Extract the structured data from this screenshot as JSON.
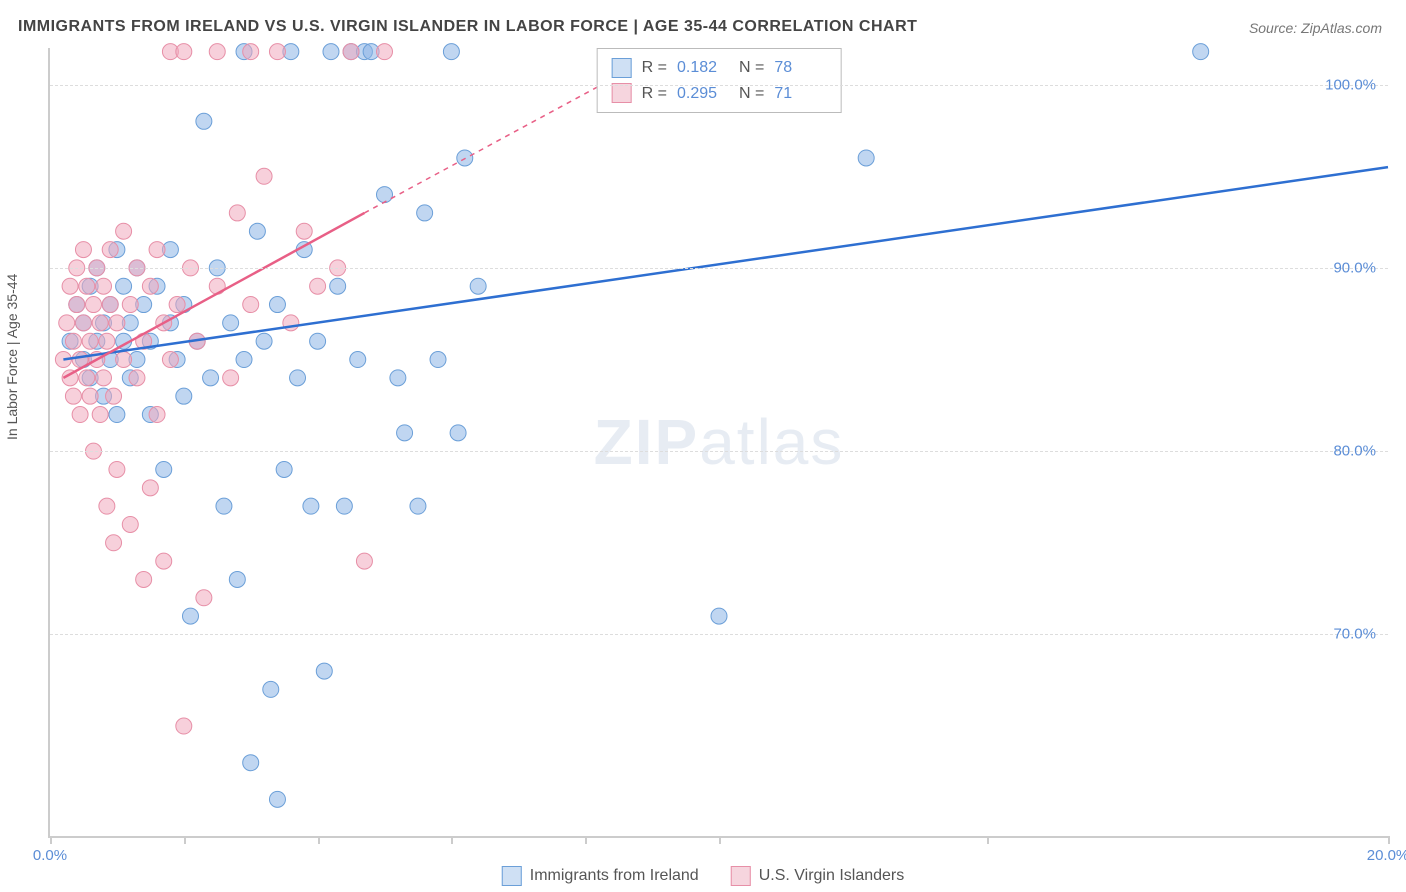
{
  "title": "IMMIGRANTS FROM IRELAND VS U.S. VIRGIN ISLANDER IN LABOR FORCE | AGE 35-44 CORRELATION CHART",
  "source": "Source: ZipAtlas.com",
  "ylabel": "In Labor Force | Age 35-44",
  "watermark_a": "ZIP",
  "watermark_b": "atlas",
  "chart": {
    "type": "scatter",
    "background_color": "#ffffff",
    "grid_color": "#dddddd",
    "axis_color": "#cccccc",
    "label_color": "#555555",
    "tick_label_color": "#5b8dd6",
    "tick_fontsize": 15,
    "title_fontsize": 16,
    "label_fontsize": 14,
    "marker_radius": 8,
    "marker_opacity": 0.6,
    "line_width": 2.5,
    "xlim": [
      0,
      20
    ],
    "ylim": [
      59,
      102
    ],
    "xticks": [
      0,
      2,
      4,
      6,
      8,
      10,
      14,
      20
    ],
    "xtick_labels": {
      "0": "0.0%",
      "20": "20.0%"
    },
    "yticks": [
      70,
      80,
      90,
      100
    ],
    "ytick_labels": {
      "70": "70.0%",
      "80": "80.0%",
      "90": "90.0%",
      "100": "100.0%"
    },
    "series": [
      {
        "key": "ireland",
        "label": "Immigrants from Ireland",
        "marker_fill": "rgba(140, 180, 230, 0.55)",
        "marker_stroke": "#6b9fd8",
        "line_color": "#2e6fd1",
        "swatch_fill": "#cfe0f4",
        "swatch_border": "#6b9fd8",
        "R": "0.182",
        "N": "78",
        "trend": {
          "x1": 0.2,
          "y1": 85.0,
          "x2": 20.0,
          "y2": 95.5,
          "dash_from_x": 20.0
        },
        "points": [
          [
            0.3,
            86
          ],
          [
            0.4,
            88
          ],
          [
            0.5,
            85
          ],
          [
            0.5,
            87
          ],
          [
            0.6,
            89
          ],
          [
            0.6,
            84
          ],
          [
            0.7,
            86
          ],
          [
            0.7,
            90
          ],
          [
            0.8,
            83
          ],
          [
            0.8,
            87
          ],
          [
            0.9,
            88
          ],
          [
            0.9,
            85
          ],
          [
            1.0,
            91
          ],
          [
            1.0,
            82
          ],
          [
            1.1,
            86
          ],
          [
            1.1,
            89
          ],
          [
            1.2,
            84
          ],
          [
            1.2,
            87
          ],
          [
            1.3,
            90
          ],
          [
            1.3,
            85
          ],
          [
            1.4,
            88
          ],
          [
            1.5,
            86
          ],
          [
            1.5,
            82
          ],
          [
            1.6,
            89
          ],
          [
            1.7,
            79
          ],
          [
            1.8,
            87
          ],
          [
            1.8,
            91
          ],
          [
            1.9,
            85
          ],
          [
            2.0,
            88
          ],
          [
            2.0,
            83
          ],
          [
            2.1,
            71
          ],
          [
            2.2,
            86
          ],
          [
            2.3,
            98
          ],
          [
            2.4,
            84
          ],
          [
            2.5,
            90
          ],
          [
            2.6,
            77
          ],
          [
            2.7,
            87
          ],
          [
            2.8,
            73
          ],
          [
            2.9,
            85
          ],
          [
            2.9,
            101.8
          ],
          [
            3.0,
            63
          ],
          [
            3.1,
            92
          ],
          [
            3.2,
            86
          ],
          [
            3.3,
            67
          ],
          [
            3.4,
            88
          ],
          [
            3.4,
            61
          ],
          [
            3.5,
            79
          ],
          [
            3.6,
            101.8
          ],
          [
            3.7,
            84
          ],
          [
            3.8,
            91
          ],
          [
            3.9,
            77
          ],
          [
            4.0,
            86
          ],
          [
            4.1,
            68
          ],
          [
            4.2,
            101.8
          ],
          [
            4.3,
            89
          ],
          [
            4.4,
            77
          ],
          [
            4.5,
            101.8
          ],
          [
            4.6,
            85
          ],
          [
            4.7,
            101.8
          ],
          [
            4.8,
            101.8
          ],
          [
            5.0,
            94
          ],
          [
            5.2,
            84
          ],
          [
            5.3,
            81
          ],
          [
            5.5,
            77
          ],
          [
            5.6,
            93
          ],
          [
            5.8,
            85
          ],
          [
            6.0,
            101.8
          ],
          [
            6.1,
            81
          ],
          [
            6.2,
            96
          ],
          [
            6.4,
            89
          ],
          [
            10.0,
            71
          ],
          [
            12.2,
            96
          ],
          [
            17.2,
            101.8
          ]
        ]
      },
      {
        "key": "usvi",
        "label": "U.S. Virgin Islanders",
        "marker_fill": "rgba(240, 170, 190, 0.55)",
        "marker_stroke": "#e78fa7",
        "line_color": "#e85f86",
        "swatch_fill": "#f6d5de",
        "swatch_border": "#e78fa7",
        "R": "0.295",
        "N": "71",
        "trend": {
          "x1": 0.2,
          "y1": 84.0,
          "x2": 4.7,
          "y2": 93.0,
          "dash_from_x": 4.7,
          "dash_x2": 8.5,
          "dash_y2": 100.5
        },
        "points": [
          [
            0.2,
            85
          ],
          [
            0.25,
            87
          ],
          [
            0.3,
            84
          ],
          [
            0.3,
            89
          ],
          [
            0.35,
            86
          ],
          [
            0.35,
            83
          ],
          [
            0.4,
            88
          ],
          [
            0.4,
            90
          ],
          [
            0.45,
            85
          ],
          [
            0.45,
            82
          ],
          [
            0.5,
            87
          ],
          [
            0.5,
            91
          ],
          [
            0.55,
            84
          ],
          [
            0.55,
            89
          ],
          [
            0.6,
            86
          ],
          [
            0.6,
            83
          ],
          [
            0.65,
            88
          ],
          [
            0.65,
            80
          ],
          [
            0.7,
            85
          ],
          [
            0.7,
            90
          ],
          [
            0.75,
            87
          ],
          [
            0.75,
            82
          ],
          [
            0.8,
            89
          ],
          [
            0.8,
            84
          ],
          [
            0.85,
            86
          ],
          [
            0.85,
            77
          ],
          [
            0.9,
            88
          ],
          [
            0.9,
            91
          ],
          [
            0.95,
            83
          ],
          [
            0.95,
            75
          ],
          [
            1.0,
            87
          ],
          [
            1.0,
            79
          ],
          [
            1.1,
            85
          ],
          [
            1.1,
            92
          ],
          [
            1.2,
            88
          ],
          [
            1.2,
            76
          ],
          [
            1.3,
            84
          ],
          [
            1.3,
            90
          ],
          [
            1.4,
            86
          ],
          [
            1.4,
            73
          ],
          [
            1.5,
            89
          ],
          [
            1.5,
            78
          ],
          [
            1.6,
            91
          ],
          [
            1.6,
            82
          ],
          [
            1.7,
            87
          ],
          [
            1.7,
            74
          ],
          [
            1.8,
            85
          ],
          [
            1.8,
            101.8
          ],
          [
            1.9,
            88
          ],
          [
            2.0,
            101.8
          ],
          [
            2.0,
            65
          ],
          [
            2.1,
            90
          ],
          [
            2.2,
            86
          ],
          [
            2.3,
            72
          ],
          [
            2.5,
            89
          ],
          [
            2.5,
            101.8
          ],
          [
            2.7,
            84
          ],
          [
            2.8,
            93
          ],
          [
            3.0,
            88
          ],
          [
            3.0,
            101.8
          ],
          [
            3.2,
            95
          ],
          [
            3.4,
            101.8
          ],
          [
            3.6,
            87
          ],
          [
            3.8,
            92
          ],
          [
            4.0,
            89
          ],
          [
            4.3,
            90
          ],
          [
            4.5,
            101.8
          ],
          [
            4.7,
            74
          ],
          [
            5.0,
            101.8
          ]
        ]
      }
    ],
    "legend_top": {
      "R_label": "R  =",
      "N_label": "N  ="
    }
  }
}
